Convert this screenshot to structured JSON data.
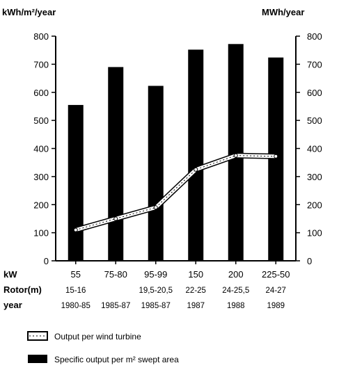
{
  "chart_data": {
    "type": "bar",
    "left_axis_label": "kWh/m²/year",
    "right_axis_label": "MWh/year",
    "ylim_left": [
      0,
      800
    ],
    "ylim_right": [
      0,
      800
    ],
    "yticks_left": [
      "0",
      "100",
      "200",
      "300",
      "400",
      "500",
      "600",
      "700",
      "800"
    ],
    "yticks_right": [
      "0",
      "100",
      "200",
      "300",
      "400",
      "500",
      "600",
      "700",
      "800"
    ],
    "grid": false,
    "legend_position": "bottom",
    "rows": [
      {
        "key": "kW",
        "values": [
          "55",
          "75-80",
          "95-99",
          "150",
          "200",
          "225-50"
        ]
      },
      {
        "key": "Rotor(m)",
        "values": [
          "15-16",
          "",
          "19,5-20,5",
          "22-25",
          "24-25,5",
          "24-27"
        ]
      },
      {
        "key": "year",
        "values": [
          "1980-85",
          "1985-87",
          "1985-87",
          "1987",
          "1988",
          "1989"
        ]
      }
    ],
    "series": [
      {
        "name": "Specific output per m² swept area",
        "kind": "bar",
        "axis": "left",
        "values": [
          555,
          690,
          623,
          752,
          772,
          724
        ]
      },
      {
        "name": "Output per wind turbine",
        "kind": "line",
        "axis": "right",
        "values": [
          110,
          150,
          190,
          325,
          375,
          372
        ]
      }
    ]
  }
}
